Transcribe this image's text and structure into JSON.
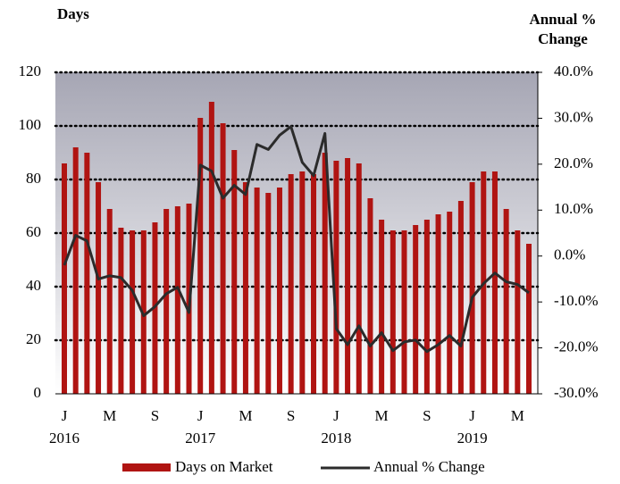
{
  "chart_data": {
    "type": "bar_line",
    "ylabel": "Days",
    "y2label": [
      "Annual %",
      "Change"
    ],
    "categories": [
      "J",
      null,
      null,
      null,
      "M",
      null,
      null,
      null,
      "S",
      null,
      null,
      null,
      "J",
      null,
      null,
      null,
      "M",
      null,
      null,
      null,
      "S",
      null,
      null,
      null,
      "J",
      null,
      null,
      null,
      "M",
      null,
      null,
      null,
      "S",
      null,
      null,
      null,
      "J",
      null,
      null,
      null,
      "M",
      null
    ],
    "years": [
      "2016",
      null,
      null,
      null,
      null,
      null,
      null,
      null,
      null,
      null,
      null,
      null,
      "2017",
      null,
      null,
      null,
      null,
      null,
      null,
      null,
      null,
      null,
      null,
      null,
      "2018",
      null,
      null,
      null,
      null,
      null,
      null,
      null,
      null,
      null,
      null,
      null,
      "2019",
      null,
      null,
      null,
      null,
      null
    ],
    "series": [
      {
        "name": "Days on Market",
        "color": "#b01412",
        "axis": "y",
        "values": [
          86,
          92,
          90,
          79,
          69,
          62,
          61,
          61,
          64,
          69,
          70,
          71,
          103,
          109,
          101,
          91,
          79,
          77,
          75,
          77,
          82,
          83,
          82,
          90,
          87,
          88,
          86,
          73,
          65,
          61,
          61,
          63,
          65,
          67,
          68,
          72,
          79,
          83,
          83,
          69,
          61,
          56
        ]
      },
      {
        "name": "Annual % Change",
        "color": "#2b2b2b",
        "axis": "y2",
        "values": [
          -2,
          4.5,
          3.3,
          -5,
          -4.3,
          -4.7,
          -7.5,
          -13,
          -11,
          -8.2,
          -6.8,
          -12.3,
          19.8,
          18.5,
          12.6,
          15.4,
          13.4,
          24.3,
          23.2,
          26.3,
          28.2,
          20.4,
          17.5,
          26.7,
          -15.8,
          -19.3,
          -15.2,
          -19.6,
          -16.7,
          -20.6,
          -18.7,
          -18.3,
          -20.8,
          -19.3,
          -17.3,
          -19.6,
          -9,
          -6,
          -3.7,
          -5.6,
          -6.2,
          -8
        ]
      }
    ],
    "ylim": [
      0,
      120
    ],
    "yticks": [
      0,
      20,
      40,
      60,
      80,
      100,
      120
    ],
    "y2lim": [
      -30,
      40
    ],
    "y2ticks": [
      {
        "value": -30,
        "label": "-30.0%"
      },
      {
        "value": -20,
        "label": "-20.0%"
      },
      {
        "value": -10,
        "label": "-10.0%"
      },
      {
        "value": 0,
        "label": "0.0%"
      },
      {
        "value": 10,
        "label": "10.0%"
      },
      {
        "value": 20,
        "label": "20.0%"
      },
      {
        "value": 30,
        "label": "30.0%"
      },
      {
        "value": 40,
        "label": "40.0%"
      }
    ],
    "grid": true,
    "legend": "bottom"
  }
}
